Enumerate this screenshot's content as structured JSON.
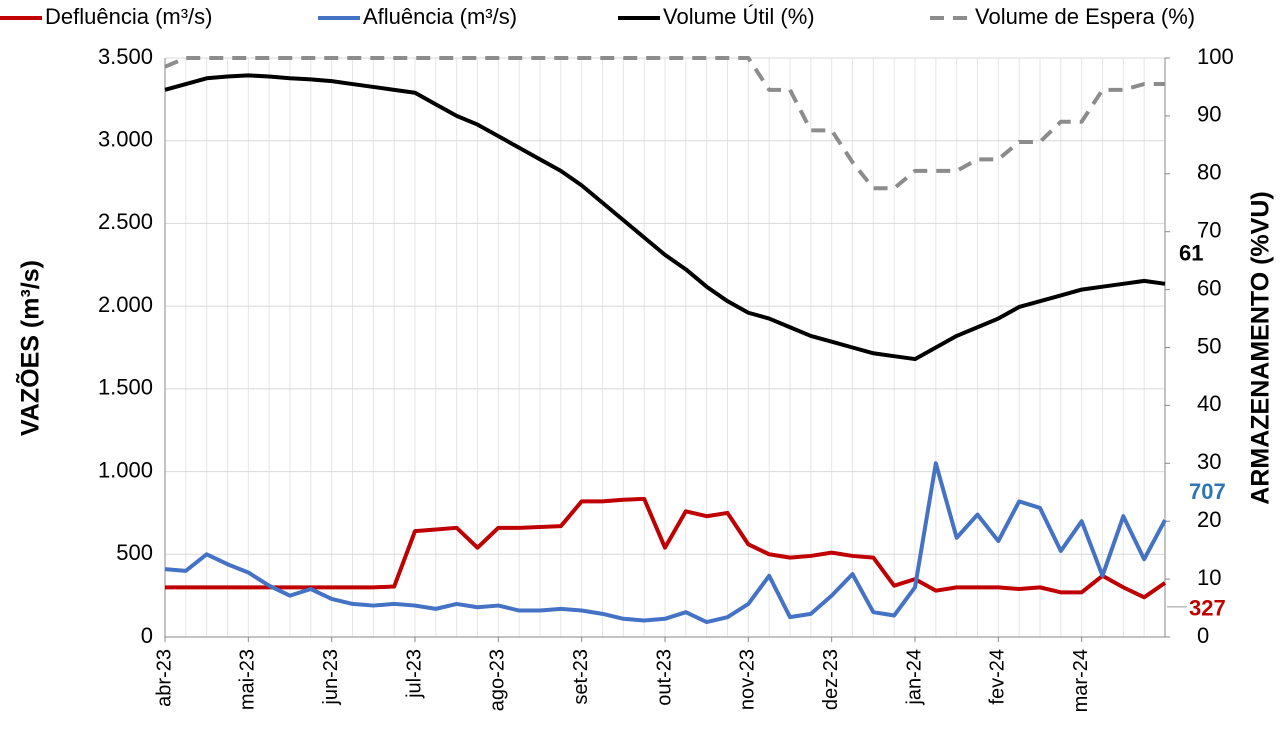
{
  "chart_data": {
    "type": "line",
    "legend": "top",
    "grid": true,
    "ylabel": "VAZÕES (m³/s)",
    "y2label": "ARMAZENAMENTO (%VU)",
    "categories": [
      "abr-23",
      null,
      null,
      null,
      "mai-23",
      null,
      null,
      null,
      "jun-23",
      null,
      null,
      null,
      "jul-23",
      null,
      null,
      null,
      "ago-23",
      null,
      null,
      null,
      "set-23",
      null,
      null,
      null,
      "out-23",
      null,
      null,
      null,
      "nov-23",
      null,
      null,
      null,
      "dez-23",
      null,
      null,
      null,
      "jan-24",
      null,
      null,
      null,
      "fev-24",
      null,
      null,
      null,
      "mar-24",
      null,
      null,
      null,
      null
    ],
    "ylim": [
      0,
      3500
    ],
    "yticks": [
      0,
      500,
      {
        "value": 1000,
        "label": "1.000"
      },
      {
        "value": 1500,
        "label": "1.500"
      },
      {
        "value": 2000,
        "label": "2.000"
      },
      {
        "value": 2500,
        "label": "2.500"
      },
      {
        "value": 3000,
        "label": "3.000"
      },
      {
        "value": 3500,
        "label": "3.500"
      }
    ],
    "y2lim": [
      0,
      100
    ],
    "y2ticks": [
      0,
      10,
      20,
      30,
      40,
      50,
      60,
      70,
      80,
      90,
      100
    ],
    "series": [
      {
        "name": "Defluência (m³/s)",
        "color": "#c00000",
        "dashed": false,
        "values": [
          300,
          300,
          300,
          300,
          300,
          300,
          300,
          300,
          300,
          300,
          300,
          305,
          640,
          650,
          660,
          540,
          660,
          660,
          665,
          670,
          820,
          820,
          830,
          835,
          540,
          760,
          730,
          750,
          560,
          500,
          480,
          490,
          510,
          490,
          480,
          310,
          350,
          280,
          300,
          300,
          300,
          290,
          300,
          270,
          270,
          370,
          300,
          240,
          327
        ]
      },
      {
        "name": "Afluência (m³/s)",
        "color": "#4472c4",
        "dashed": false,
        "values": [
          410,
          400,
          500,
          440,
          390,
          310,
          250,
          290,
          230,
          200,
          190,
          200,
          190,
          170,
          200,
          180,
          190,
          160,
          160,
          170,
          160,
          140,
          110,
          100,
          110,
          150,
          90,
          120,
          200,
          370,
          120,
          140,
          250,
          380,
          150,
          130,
          300,
          1050,
          600,
          740,
          580,
          820,
          780,
          520,
          700,
          370,
          730,
          470,
          707
        ]
      },
      {
        "name": "Volume Útil (%)",
        "color": "#000000",
        "dashed": false,
        "axis": "y2",
        "values": [
          94.5,
          95.5,
          96.5,
          96.8,
          97,
          96.8,
          96.5,
          96.3,
          96,
          95.5,
          95,
          94.5,
          94,
          92,
          90,
          88.5,
          86.5,
          84.5,
          82.5,
          80.5,
          78,
          75,
          72,
          69,
          66,
          63.5,
          60.5,
          58,
          56,
          55,
          53.5,
          52,
          51,
          50,
          49,
          48.5,
          48,
          50,
          52,
          53.5,
          55,
          57,
          58,
          59,
          60,
          60.5,
          61,
          61.5,
          61
        ]
      },
      {
        "name": "Volume de Espera (%)",
        "color": "#8c8c8c",
        "dashed": true,
        "axis": "y2",
        "values": [
          98.5,
          100,
          100,
          100,
          100,
          100,
          100,
          100,
          100,
          100,
          100,
          100,
          100,
          100,
          100,
          100,
          100,
          100,
          100,
          100,
          100,
          100,
          100,
          100,
          100,
          100,
          100,
          100,
          100,
          94.5,
          94.5,
          87.5,
          87.5,
          82,
          77.5,
          77.5,
          80.5,
          80.5,
          80.5,
          82.5,
          82.5,
          85.5,
          85.5,
          89,
          89,
          94.5,
          94.5,
          95.5,
          95.5
        ]
      }
    ]
  }
}
